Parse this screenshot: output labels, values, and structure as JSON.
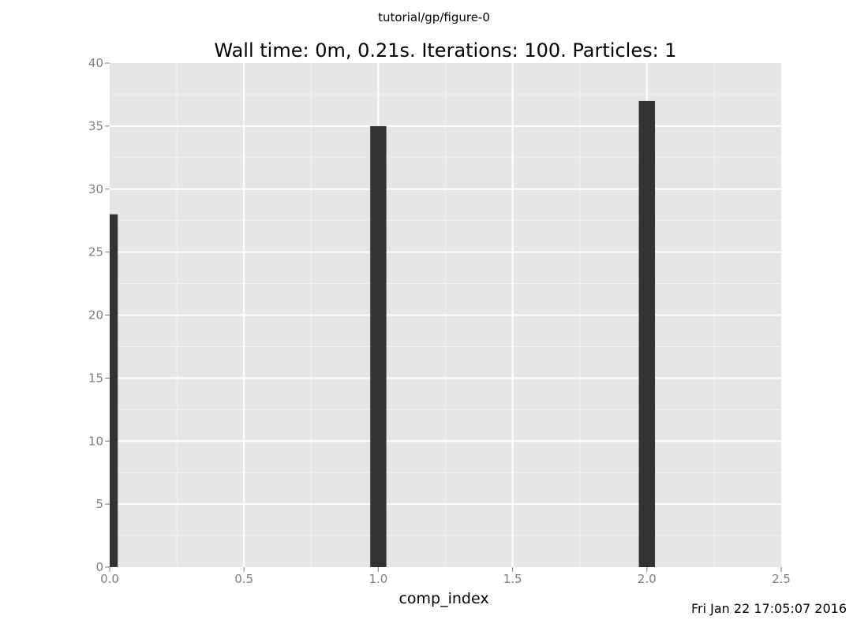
{
  "figure_title": "tutorial/gp/figure-0",
  "timestamp": "Fri Jan 22 17:05:07 2016",
  "chart_data": {
    "type": "bar",
    "title": "Wall time: 0m, 0.21s. Iterations: 100. Particles: 1",
    "xlabel": "comp_index",
    "ylabel": "",
    "x": [
      0,
      1,
      2
    ],
    "values": [
      28,
      35,
      37
    ],
    "bar_width": 0.06,
    "xlim": [
      0,
      2.5
    ],
    "ylim": [
      0,
      40
    ],
    "xticks": [
      0.0,
      0.5,
      1.0,
      1.5,
      2.0,
      2.5
    ],
    "xtick_labels": [
      "0.0",
      "0.5",
      "1.0",
      "1.5",
      "2.0",
      "2.5"
    ],
    "yticks": [
      0,
      5,
      10,
      15,
      20,
      25,
      30,
      35,
      40
    ],
    "ytick_labels": [
      "0",
      "5",
      "10",
      "15",
      "20",
      "25",
      "30",
      "35",
      "40"
    ],
    "grid": true,
    "colors": {
      "panel": "#e5e5e5",
      "grid_major": "#ffffff",
      "grid_minor": "#f2f2f2",
      "bar": "#333333",
      "tick_text": "#7f7f7f"
    }
  }
}
